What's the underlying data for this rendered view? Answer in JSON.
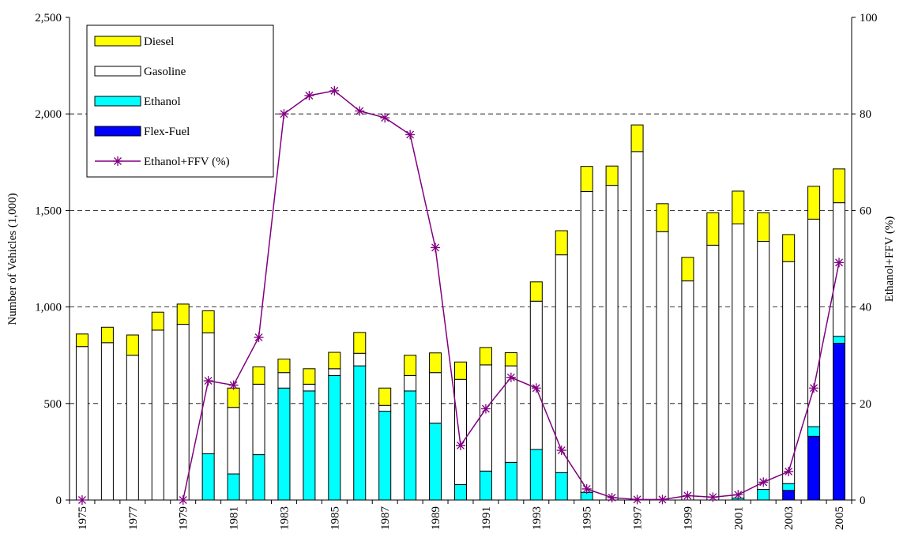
{
  "chart_data": {
    "type": "bar-line",
    "y_label": "Number of Vehicles (1,000)",
    "y2_label": "Ethanol+FFV (%)",
    "categories": [
      "1975",
      null,
      "1977",
      null,
      "1979",
      null,
      "1981",
      null,
      "1983",
      null,
      "1985",
      null,
      "1987",
      null,
      "1989",
      null,
      "1991",
      null,
      "1993",
      null,
      "1995",
      null,
      "1997",
      null,
      "1999",
      null,
      "2001",
      null,
      "2003",
      null,
      "2005"
    ],
    "series": [
      {
        "name": "Diesel",
        "color": "#ffff00",
        "values": [
          65,
          80,
          105,
          93,
          105,
          114,
          100,
          90,
          70,
          80,
          85,
          108,
          90,
          105,
          102,
          90,
          90,
          68,
          100,
          125,
          130,
          100,
          138,
          145,
          122,
          168,
          170,
          148,
          140,
          170,
          175
        ]
      },
      {
        "name": "Gasoline",
        "color": "#ffffff",
        "values": [
          795,
          815,
          750,
          880,
          910,
          626,
          345,
          365,
          80,
          35,
          35,
          65,
          30,
          80,
          262,
          545,
          550,
          500,
          768,
          1128,
          1558,
          1630,
          1805,
          1390,
          1135,
          1320,
          1420,
          1285,
          1150,
          1075,
          692
        ]
      },
      {
        "name": "Ethanol",
        "color": "#00ffff",
        "values": [
          0,
          0,
          0,
          0,
          0,
          240,
          135,
          235,
          580,
          565,
          645,
          695,
          460,
          565,
          398,
          80,
          150,
          195,
          262,
          142,
          40,
          0,
          0,
          0,
          0,
          0,
          10,
          55,
          35,
          50,
          36
        ]
      },
      {
        "name": "Flex-Fuel",
        "color": "#0000ff",
        "values": [
          0,
          0,
          0,
          0,
          0,
          0,
          0,
          0,
          0,
          0,
          0,
          0,
          0,
          0,
          0,
          0,
          0,
          0,
          0,
          0,
          0,
          0,
          0,
          0,
          0,
          0,
          0,
          0,
          50,
          330,
          812
        ]
      },
      {
        "name": "Ethanol+FFV (%)",
        "color": "#800080",
        "axis": "y2",
        "line": true,
        "values": [
          0,
          null,
          null,
          null,
          0,
          24.7,
          23.8,
          33.7,
          80,
          83.8,
          84.8,
          80.6,
          79.2,
          75.7,
          52.3,
          11.3,
          18.9,
          25.4,
          23.2,
          10.3,
          2.3,
          0.5,
          0.1,
          0.1,
          0.9,
          0.6,
          1.1,
          3.7,
          5.9,
          23.2,
          49.2
        ]
      }
    ],
    "ylim": [
      0,
      2500
    ],
    "yticks": [
      0,
      500,
      {
        "value": 1000,
        "label": "1,000"
      },
      {
        "value": 1500,
        "label": "1,500"
      },
      {
        "value": 2000,
        "label": "2,000"
      },
      {
        "value": 2500,
        "label": "2,500"
      }
    ],
    "y2lim": [
      0,
      100
    ],
    "y2ticks": [
      0,
      20,
      40,
      60,
      80,
      100
    ],
    "grid": true
  }
}
